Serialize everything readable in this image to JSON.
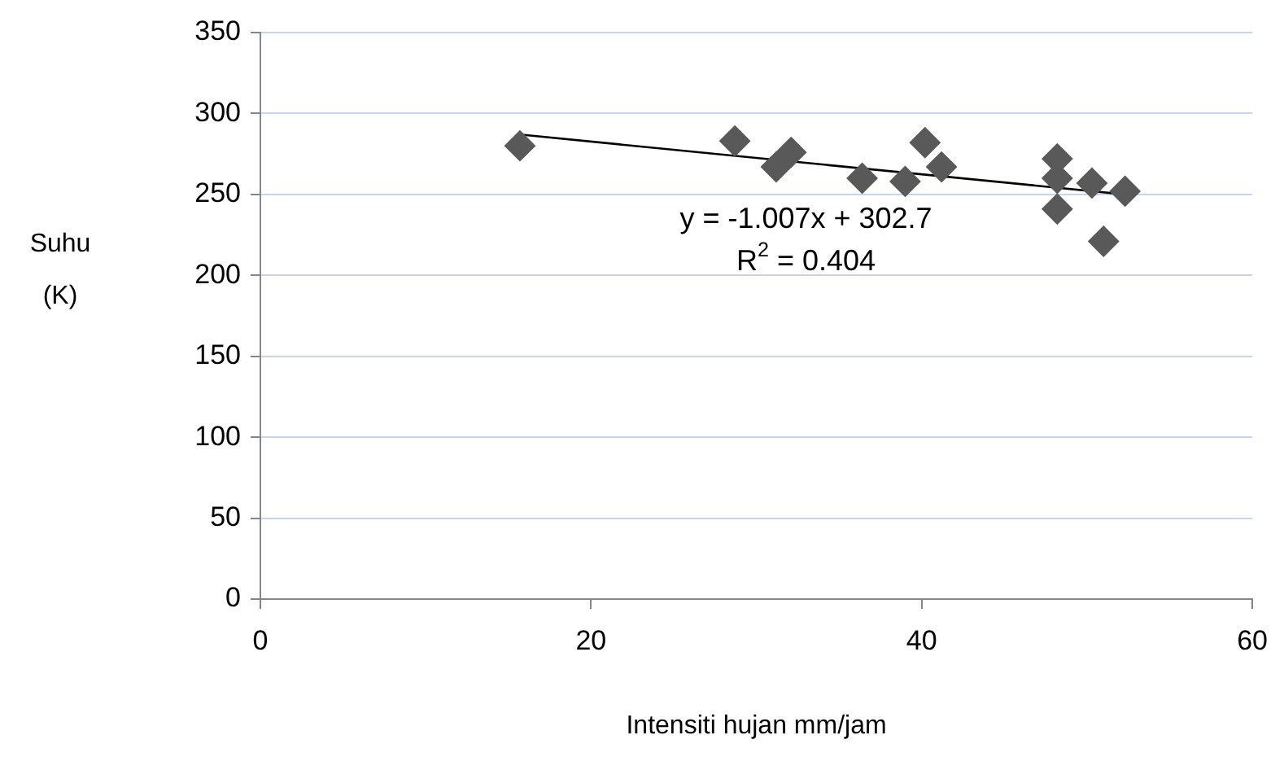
{
  "chart_data": {
    "type": "scatter",
    "xlabel": "Intensiti hujan mm/jam",
    "ylabel": "Suhu (K)",
    "xlim": [
      0,
      60
    ],
    "xticks": [
      0,
      20,
      40,
      60
    ],
    "ylim": [
      0,
      350
    ],
    "yticks": [
      0,
      50,
      100,
      150,
      200,
      250,
      300,
      350
    ],
    "grid": "y",
    "legend": false,
    "marker": "diamond",
    "series": [
      {
        "color": "#595959",
        "x": [
          15.7,
          28.7,
          31.2,
          32.1,
          36.4,
          39.0,
          40.2,
          41.2,
          48.2,
          48.2,
          48.2,
          50.3,
          51.0,
          52.3
        ],
        "values": [
          280,
          283,
          267,
          276,
          260,
          258,
          282,
          267,
          272,
          260,
          241,
          257,
          221,
          252
        ]
      },
      {
        "type": "line",
        "color": "#000000",
        "marker": "none",
        "x": [
          15.7,
          52.3
        ],
        "values": [
          287,
          250
        ]
      }
    ],
    "annotations": [
      "y = -1.007x + 302.7",
      "R$^{2}$ = 0.404"
    ]
  }
}
